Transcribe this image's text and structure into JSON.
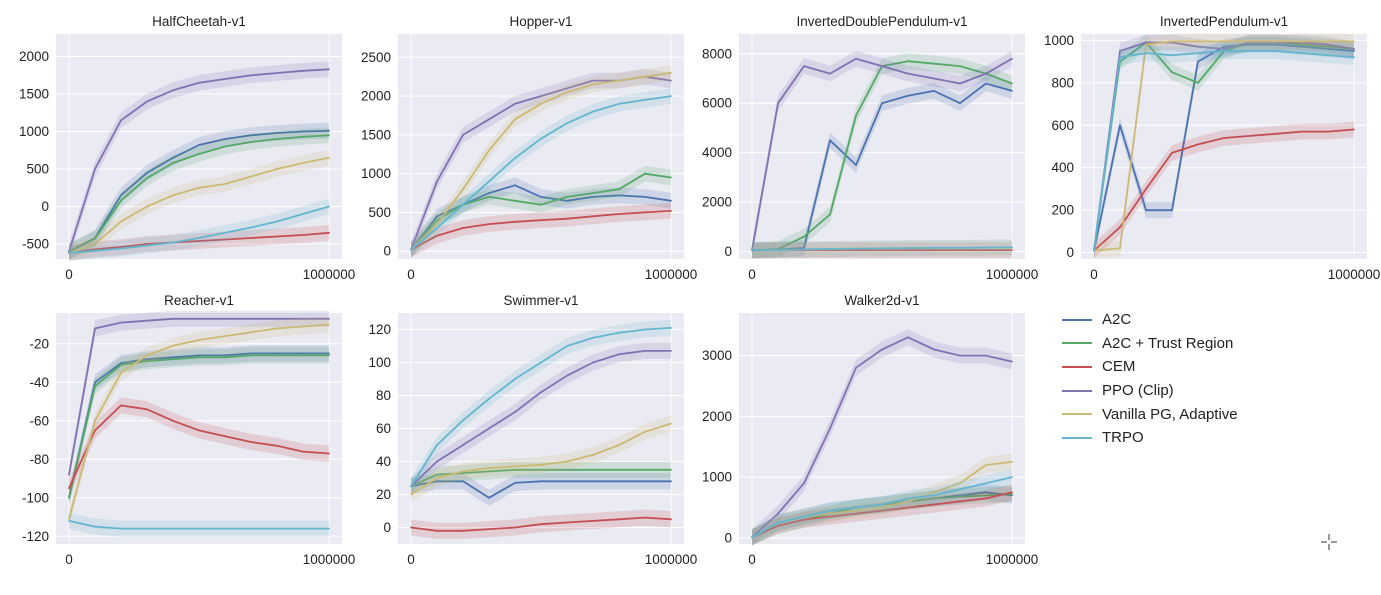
{
  "colors": {
    "A2C": "#4c72b0",
    "A2C + Trust Region": "#55a868",
    "CEM": "#c44e52",
    "PPO (Clip)": "#8172b2",
    "Vanilla PG, Adaptive": "#ccb974",
    "TRPO": "#64b5cd",
    "panel_bg": "#eaeaf2",
    "grid": "#ffffff"
  },
  "legend": {
    "items": [
      "A2C",
      "A2C + Trust Region",
      "CEM",
      "PPO (Clip)",
      "Vanilla PG, Adaptive",
      "TRPO"
    ]
  },
  "cursor_icon": "crosshair-cursor-icon",
  "chart_data": [
    {
      "type": "line",
      "title": "HalfCheetah-v1",
      "xlabel": "",
      "ylabel": "",
      "xlim": [
        0,
        1000000
      ],
      "ylim": [
        -700,
        2300
      ],
      "xticks": [
        0,
        1000000
      ],
      "xtick_labels": [
        "0",
        "1000000"
      ],
      "yticks": [
        -500,
        0,
        500,
        1000,
        1500,
        2000
      ],
      "ytick_labels": [
        "-500",
        "0",
        "500",
        "1000",
        "1500",
        "2000"
      ],
      "x": [
        0,
        100000,
        200000,
        300000,
        400000,
        500000,
        600000,
        700000,
        800000,
        900000,
        1000000
      ],
      "series": [
        {
          "name": "A2C",
          "values": [
            -600,
            -420,
            150,
            450,
            650,
            820,
            900,
            950,
            980,
            1000,
            1010
          ]
        },
        {
          "name": "A2C + Trust Region",
          "values": [
            -600,
            -430,
            80,
            380,
            580,
            700,
            800,
            860,
            900,
            930,
            950
          ]
        },
        {
          "name": "CEM",
          "values": [
            -620,
            -570,
            -540,
            -500,
            -480,
            -460,
            -440,
            -420,
            -400,
            -380,
            -350
          ]
        },
        {
          "name": "PPO (Clip)",
          "values": [
            -600,
            500,
            1150,
            1400,
            1550,
            1650,
            1700,
            1750,
            1780,
            1810,
            1830
          ]
        },
        {
          "name": "Vanilla PG, Adaptive",
          "values": [
            -620,
            -500,
            -200,
            0,
            150,
            250,
            300,
            400,
            500,
            580,
            650
          ]
        },
        {
          "name": "TRPO",
          "values": [
            -620,
            -590,
            -560,
            -520,
            -480,
            -420,
            -350,
            -280,
            -200,
            -100,
            0
          ]
        }
      ]
    },
    {
      "type": "line",
      "title": "Hopper-v1",
      "xlabel": "",
      "ylabel": "",
      "xlim": [
        0,
        1000000
      ],
      "ylim": [
        -100,
        2800
      ],
      "xticks": [
        0,
        1000000
      ],
      "xtick_labels": [
        "0",
        "1000000"
      ],
      "yticks": [
        0,
        500,
        1000,
        1500,
        2000,
        2500
      ],
      "ytick_labels": [
        "0",
        "500",
        "1000",
        "1500",
        "2000",
        "2500"
      ],
      "x": [
        0,
        100000,
        200000,
        300000,
        400000,
        500000,
        600000,
        700000,
        800000,
        900000,
        1000000
      ],
      "series": [
        {
          "name": "A2C",
          "values": [
            20,
            450,
            600,
            750,
            850,
            700,
            650,
            700,
            720,
            700,
            650
          ]
        },
        {
          "name": "A2C + Trust Region",
          "values": [
            20,
            400,
            600,
            700,
            650,
            600,
            700,
            750,
            800,
            1000,
            950
          ]
        },
        {
          "name": "CEM",
          "values": [
            20,
            200,
            300,
            350,
            380,
            400,
            420,
            450,
            480,
            500,
            520
          ]
        },
        {
          "name": "PPO (Clip)",
          "values": [
            20,
            900,
            1500,
            1700,
            1900,
            2000,
            2100,
            2200,
            2200,
            2250,
            2200
          ]
        },
        {
          "name": "Vanilla PG, Adaptive",
          "values": [
            20,
            350,
            800,
            1300,
            1700,
            1900,
            2050,
            2150,
            2200,
            2250,
            2300
          ]
        },
        {
          "name": "TRPO",
          "values": [
            20,
            300,
            600,
            900,
            1200,
            1450,
            1650,
            1800,
            1900,
            1950,
            2000
          ]
        }
      ]
    },
    {
      "type": "line",
      "title": "InvertedDoublePendulum-v1",
      "xlabel": "",
      "ylabel": "",
      "xlim": [
        0,
        1000000
      ],
      "ylim": [
        -300,
        8800
      ],
      "xticks": [
        0,
        1000000
      ],
      "xtick_labels": [
        "0",
        "1000000"
      ],
      "yticks": [
        0,
        2000,
        4000,
        6000,
        8000
      ],
      "ytick_labels": [
        "0",
        "2000",
        "4000",
        "6000",
        "8000"
      ],
      "x": [
        0,
        100000,
        200000,
        300000,
        400000,
        500000,
        600000,
        700000,
        800000,
        900000,
        1000000
      ],
      "series": [
        {
          "name": "A2C",
          "values": [
            50,
            80,
            150,
            4500,
            3500,
            6000,
            6300,
            6500,
            6000,
            6800,
            6500
          ]
        },
        {
          "name": "A2C + Trust Region",
          "values": [
            50,
            100,
            600,
            1500,
            5500,
            7500,
            7700,
            7600,
            7500,
            7200,
            6800
          ]
        },
        {
          "name": "CEM",
          "values": [
            50,
            60,
            60,
            60,
            60,
            60,
            60,
            60,
            60,
            60,
            60
          ]
        },
        {
          "name": "PPO (Clip)",
          "values": [
            50,
            6000,
            7500,
            7200,
            7800,
            7500,
            7200,
            7000,
            6800,
            7200,
            7800
          ]
        },
        {
          "name": "Vanilla PG, Adaptive",
          "values": [
            50,
            60,
            80,
            100,
            120,
            130,
            140,
            150,
            150,
            160,
            160
          ]
        },
        {
          "name": "TRPO",
          "values": [
            50,
            70,
            90,
            110,
            120,
            130,
            140,
            150,
            150,
            160,
            170
          ]
        }
      ]
    },
    {
      "type": "line",
      "title": "InvertedPendulum-v1",
      "xlabel": "",
      "ylabel": "",
      "xlim": [
        0,
        1000000
      ],
      "ylim": [
        -30,
        1030
      ],
      "xticks": [
        0,
        1000000
      ],
      "xtick_labels": [
        "0",
        "1000000"
      ],
      "yticks": [
        0,
        200,
        400,
        600,
        800,
        1000
      ],
      "ytick_labels": [
        "0",
        "200",
        "400",
        "600",
        "800",
        "1000"
      ],
      "x": [
        0,
        100000,
        200000,
        300000,
        400000,
        500000,
        600000,
        700000,
        800000,
        900000,
        1000000
      ],
      "series": [
        {
          "name": "A2C",
          "values": [
            10,
            600,
            200,
            200,
            900,
            970,
            980,
            980,
            970,
            960,
            950
          ]
        },
        {
          "name": "A2C + Trust Region",
          "values": [
            10,
            900,
            990,
            850,
            800,
            950,
            990,
            990,
            980,
            970,
            960
          ]
        },
        {
          "name": "CEM",
          "values": [
            10,
            120,
            300,
            470,
            510,
            540,
            550,
            560,
            570,
            570,
            580
          ]
        },
        {
          "name": "PPO (Clip)",
          "values": [
            10,
            950,
            990,
            990,
            970,
            960,
            990,
            990,
            990,
            980,
            960
          ]
        },
        {
          "name": "Vanilla PG, Adaptive",
          "values": [
            10,
            20,
            980,
            995,
            995,
            995,
            995,
            995,
            995,
            995,
            995
          ]
        },
        {
          "name": "TRPO",
          "values": [
            10,
            920,
            940,
            930,
            940,
            950,
            950,
            950,
            940,
            930,
            920
          ]
        }
      ]
    },
    {
      "type": "line",
      "title": "Reacher-v1",
      "xlabel": "",
      "ylabel": "",
      "xlim": [
        0,
        1000000
      ],
      "ylim": [
        -124,
        -4
      ],
      "xticks": [
        0,
        1000000
      ],
      "xtick_labels": [
        "0",
        "1000000"
      ],
      "yticks": [
        -120,
        -100,
        -80,
        -60,
        -40,
        -20
      ],
      "ytick_labels": [
        "-120",
        "-100",
        "-80",
        "-60",
        "-40",
        "-20"
      ],
      "x": [
        0,
        100000,
        200000,
        300000,
        400000,
        500000,
        600000,
        700000,
        800000,
        900000,
        1000000
      ],
      "series": [
        {
          "name": "A2C",
          "values": [
            -100,
            -40,
            -30,
            -28,
            -27,
            -26,
            -26,
            -25,
            -25,
            -25,
            -25
          ]
        },
        {
          "name": "A2C + Trust Region",
          "values": [
            -100,
            -42,
            -31,
            -29,
            -28,
            -27,
            -27,
            -26,
            -26,
            -26,
            -26
          ]
        },
        {
          "name": "CEM",
          "values": [
            -95,
            -65,
            -52,
            -54,
            -60,
            -65,
            -68,
            -71,
            -73,
            -76,
            -77
          ]
        },
        {
          "name": "PPO (Clip)",
          "values": [
            -88,
            -12,
            -9,
            -8,
            -7,
            -7,
            -7,
            -7,
            -7,
            -7,
            -7
          ]
        },
        {
          "name": "Vanilla PG, Adaptive",
          "values": [
            -111,
            -60,
            -35,
            -26,
            -21,
            -18,
            -16,
            -14,
            -12,
            -11,
            -10
          ]
        },
        {
          "name": "TRPO",
          "values": [
            -112,
            -115,
            -116,
            -116,
            -116,
            -116,
            -116,
            -116,
            -116,
            -116,
            -116
          ]
        }
      ]
    },
    {
      "type": "line",
      "title": "Swimmer-v1",
      "xlabel": "",
      "ylabel": "",
      "xlim": [
        0,
        1000000
      ],
      "ylim": [
        -10,
        130
      ],
      "xticks": [
        0,
        1000000
      ],
      "xtick_labels": [
        "0",
        "1000000"
      ],
      "yticks": [
        0,
        20,
        40,
        60,
        80,
        100,
        120
      ],
      "ytick_labels": [
        "0",
        "20",
        "40",
        "60",
        "80",
        "100",
        "120"
      ],
      "x": [
        0,
        100000,
        200000,
        300000,
        400000,
        500000,
        600000,
        700000,
        800000,
        900000,
        1000000
      ],
      "series": [
        {
          "name": "A2C",
          "values": [
            25,
            28,
            28,
            18,
            27,
            28,
            28,
            28,
            28,
            28,
            28
          ]
        },
        {
          "name": "A2C + Trust Region",
          "values": [
            25,
            32,
            33,
            34,
            35,
            35,
            35,
            35,
            35,
            35,
            35
          ]
        },
        {
          "name": "CEM",
          "values": [
            0,
            -2,
            -2,
            -1,
            0,
            2,
            3,
            4,
            5,
            6,
            5
          ]
        },
        {
          "name": "PPO (Clip)",
          "values": [
            25,
            40,
            50,
            60,
            70,
            82,
            92,
            100,
            105,
            107,
            107
          ]
        },
        {
          "name": "Vanilla PG, Adaptive",
          "values": [
            20,
            30,
            34,
            36,
            37,
            38,
            40,
            44,
            50,
            58,
            63
          ]
        },
        {
          "name": "TRPO",
          "values": [
            25,
            50,
            65,
            78,
            90,
            100,
            110,
            115,
            118,
            120,
            121
          ]
        }
      ]
    },
    {
      "type": "line",
      "title": "Walker2d-v1",
      "xlabel": "",
      "ylabel": "",
      "xlim": [
        0,
        1000000
      ],
      "ylim": [
        -100,
        3700
      ],
      "xticks": [
        0,
        1000000
      ],
      "xtick_labels": [
        "0",
        "1000000"
      ],
      "yticks": [
        0,
        1000,
        2000,
        3000
      ],
      "ytick_labels": [
        "0",
        "1000",
        "2000",
        "3000"
      ],
      "x": [
        0,
        100000,
        200000,
        300000,
        400000,
        500000,
        600000,
        700000,
        800000,
        900000,
        1000000
      ],
      "series": [
        {
          "name": "A2C",
          "values": [
            10,
            250,
            350,
            450,
            500,
            550,
            600,
            650,
            700,
            750,
            700
          ]
        },
        {
          "name": "A2C + Trust Region",
          "values": [
            10,
            200,
            300,
            400,
            500,
            550,
            600,
            650,
            680,
            700,
            720
          ]
        },
        {
          "name": "CEM",
          "values": [
            10,
            200,
            300,
            350,
            400,
            450,
            500,
            550,
            600,
            650,
            750
          ]
        },
        {
          "name": "PPO (Clip)",
          "values": [
            10,
            400,
            900,
            1800,
            2800,
            3100,
            3300,
            3100,
            3000,
            3000,
            2900
          ]
        },
        {
          "name": "Vanilla PG, Adaptive",
          "values": [
            10,
            250,
            350,
            400,
            450,
            500,
            600,
            750,
            900,
            1200,
            1250
          ]
        },
        {
          "name": "TRPO",
          "values": [
            10,
            250,
            350,
            450,
            500,
            550,
            650,
            700,
            800,
            900,
            1000
          ]
        }
      ]
    }
  ]
}
